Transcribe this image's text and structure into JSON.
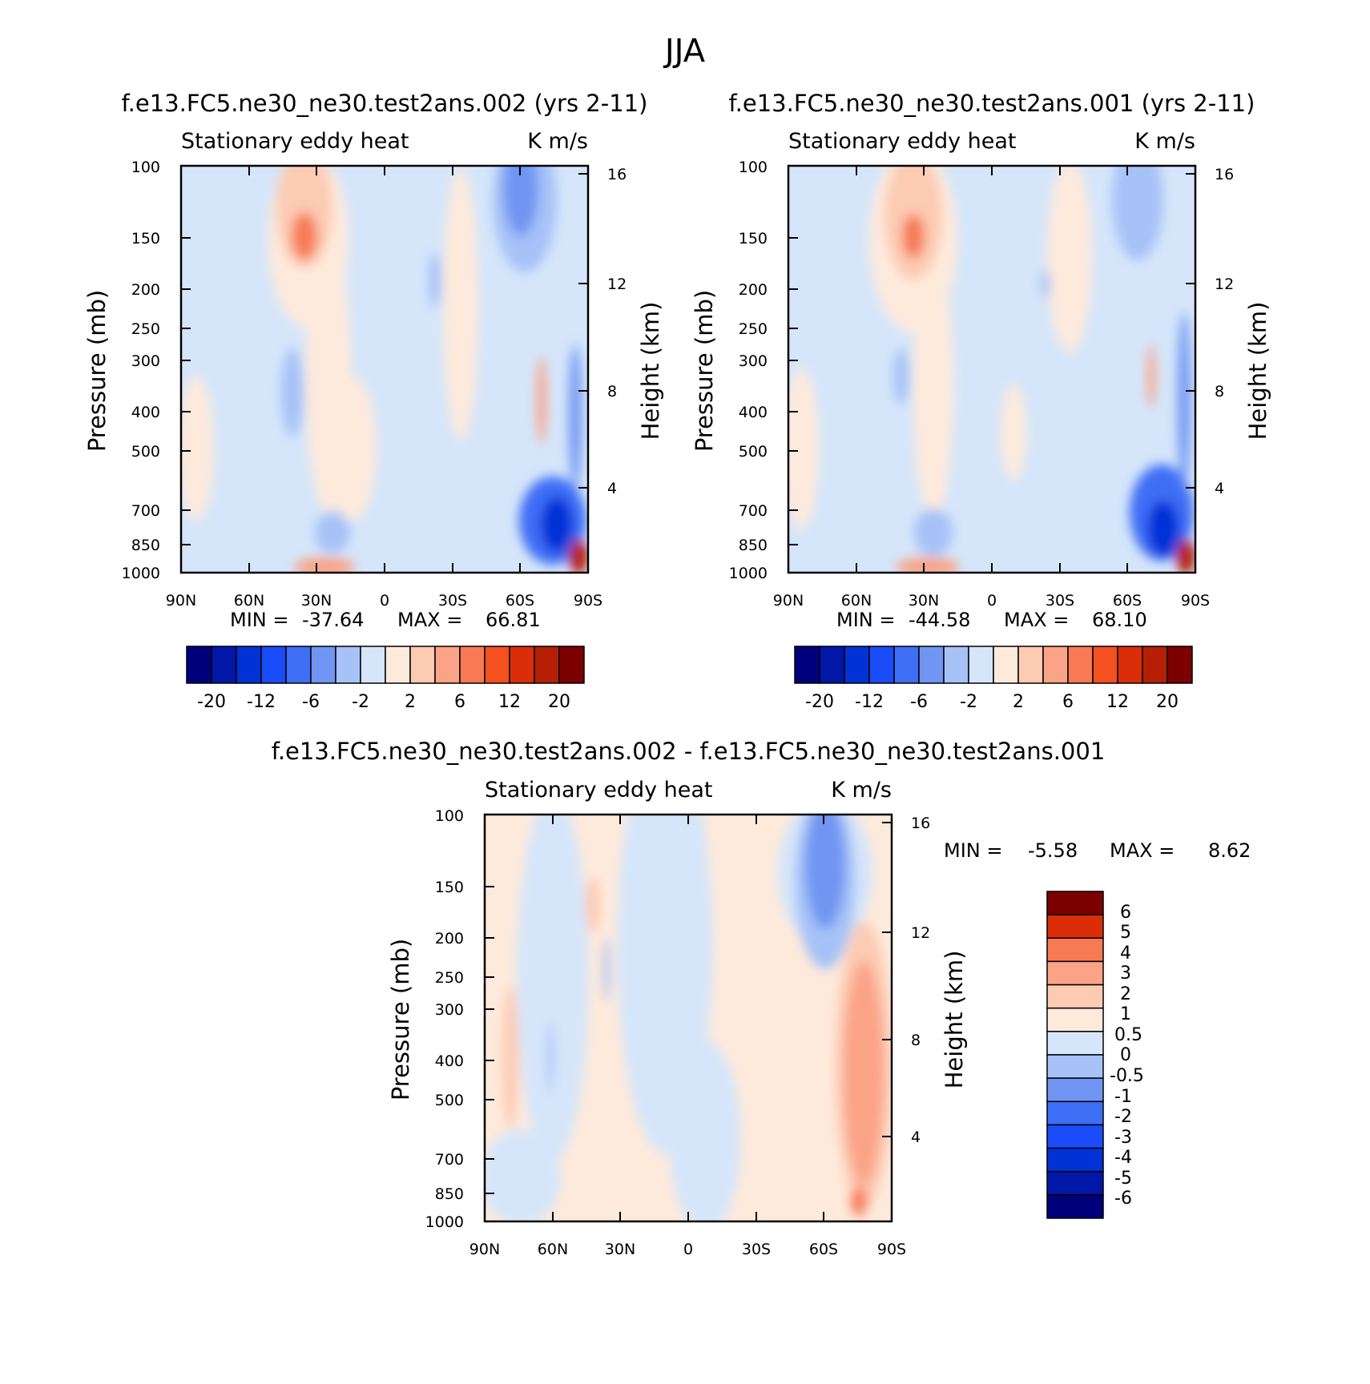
{
  "figure_title": "JJA",
  "colors": {
    "divergent_16": [
      "#00007d",
      "#0017a8",
      "#0032d6",
      "#1b4cfa",
      "#3d6ef5",
      "#7095f2",
      "#a6c2f7",
      "#d5e6fa",
      "#feeadb",
      "#fccbb2",
      "#faa386",
      "#f77a55",
      "#f5501f",
      "#d92e09",
      "#b51f06",
      "#7d0000"
    ],
    "divergent_14": [
      "#00007d",
      "#0017a8",
      "#0032d6",
      "#1b4cfa",
      "#3d6ef5",
      "#7095f2",
      "#a6c2f7",
      "#d5e6fa",
      "#feeadb",
      "#fccbb2",
      "#faa386",
      "#f77a55",
      "#d92e09",
      "#7d0000"
    ]
  },
  "chart_data": [
    {
      "type": "heatmap",
      "subtype": "filled-contour",
      "title": "f.e13.FC5.ne30_ne30.test2ans.002 (yrs 2-11)",
      "left_string": "Stationary eddy heat",
      "right_string": "K m/s",
      "xlabel": "",
      "ylabel": "Pressure (mb)",
      "ylabel_right": "Height (km)",
      "x_ticks": [
        "90N",
        "60N",
        "30N",
        "0",
        "30S",
        "60S",
        "90S"
      ],
      "y_ticks": [
        "100",
        "150",
        "200",
        "250",
        "300",
        "400",
        "500",
        "700",
        "850",
        "1000"
      ],
      "height_ticks": [
        "16",
        "12",
        "8",
        "4"
      ],
      "stats": {
        "min_label": "MIN =",
        "min": "-37.64",
        "max_label": "MAX =",
        "max": "66.81"
      },
      "colorbar": {
        "orientation": "horizontal",
        "labels": [
          "-20",
          "-12",
          "-6",
          "-2",
          "2",
          "6",
          "12",
          "20"
        ]
      },
      "features": [
        {
          "lat": 35,
          "p": 150,
          "value": 8,
          "desc": "upper-level positive maximum near 35N"
        },
        {
          "lat": -68,
          "p": 130,
          "value": -6,
          "desc": "upper-level negative center near 65S"
        },
        {
          "lat": 35,
          "p": 1000,
          "value": 10,
          "desc": "surface positive near 30N"
        },
        {
          "lat": -80,
          "p": 750,
          "value": -20,
          "desc": "lower-tropospheric negative near Antarctica"
        },
        {
          "lat": -88,
          "p": 950,
          "value": 40,
          "desc": "near-surface positive maximum at 90S"
        }
      ]
    },
    {
      "type": "heatmap",
      "subtype": "filled-contour",
      "title": "f.e13.FC5.ne30_ne30.test2ans.001 (yrs 2-11)",
      "left_string": "Stationary eddy heat",
      "right_string": "K m/s",
      "xlabel": "",
      "ylabel": "Pressure (mb)",
      "ylabel_right": "Height (km)",
      "x_ticks": [
        "90N",
        "60N",
        "30N",
        "0",
        "30S",
        "60S",
        "90S"
      ],
      "y_ticks": [
        "100",
        "150",
        "200",
        "250",
        "300",
        "400",
        "500",
        "700",
        "850",
        "1000"
      ],
      "height_ticks": [
        "16",
        "12",
        "8",
        "4"
      ],
      "stats": {
        "min_label": "MIN =",
        "min": "-44.58",
        "max_label": "MAX =",
        "max": "68.10"
      },
      "colorbar": {
        "orientation": "horizontal",
        "labels": [
          "-20",
          "-12",
          "-6",
          "-2",
          "2",
          "6",
          "12",
          "20"
        ]
      },
      "features": [
        {
          "lat": 35,
          "p": 150,
          "value": 7,
          "desc": "upper-level positive maximum near 35N"
        },
        {
          "lat": -68,
          "p": 130,
          "value": -3,
          "desc": "upper-level negative center near 65S"
        },
        {
          "lat": 35,
          "p": 1000,
          "value": 9,
          "desc": "surface positive near 30N"
        },
        {
          "lat": -80,
          "p": 750,
          "value": -20,
          "desc": "lower-tropospheric negative near Antarctica"
        },
        {
          "lat": -88,
          "p": 950,
          "value": 40,
          "desc": "near-surface positive maximum at 90S"
        }
      ]
    },
    {
      "type": "heatmap",
      "subtype": "filled-contour",
      "title": "f.e13.FC5.ne30_ne30.test2ans.002 - f.e13.FC5.ne30_ne30.test2ans.001",
      "left_string": "Stationary eddy heat",
      "right_string": "K m/s",
      "xlabel": "",
      "ylabel": "Pressure (mb)",
      "ylabel_right": "Height (km)",
      "x_ticks": [
        "90N",
        "60N",
        "30N",
        "0",
        "30S",
        "60S",
        "90S"
      ],
      "y_ticks": [
        "100",
        "150",
        "200",
        "250",
        "300",
        "400",
        "500",
        "700",
        "850",
        "1000"
      ],
      "height_ticks": [
        "16",
        "12",
        "8",
        "4"
      ],
      "stats": {
        "min_label": "MIN =",
        "min": "-5.58",
        "max_label": "MAX =",
        "max": "8.62"
      },
      "colorbar": {
        "orientation": "vertical",
        "labels": [
          "6",
          "5",
          "4",
          "3",
          "2",
          "1",
          "0.5",
          "0",
          "-0.5",
          "-1",
          "-2",
          "-3",
          "-4",
          "-5",
          "-6"
        ]
      },
      "features": [
        {
          "lat": -68,
          "p": 170,
          "value": -1.5,
          "desc": "upper-level negative near 65S"
        },
        {
          "lat": -80,
          "p": 450,
          "value": 2,
          "desc": "positive column near 80S"
        },
        {
          "lat": -82,
          "p": 950,
          "value": 4,
          "desc": "near-surface positive near Antarctica"
        },
        {
          "lat": 75,
          "p": 400,
          "value": 0.7,
          "desc": "weak positive near 75N"
        },
        {
          "lat": 40,
          "p": 180,
          "value": 0.7,
          "desc": "weak positive near 40N"
        },
        {
          "lat": -42,
          "p": 200,
          "value": 0.7,
          "desc": "weak positive near 40S"
        }
      ]
    }
  ]
}
